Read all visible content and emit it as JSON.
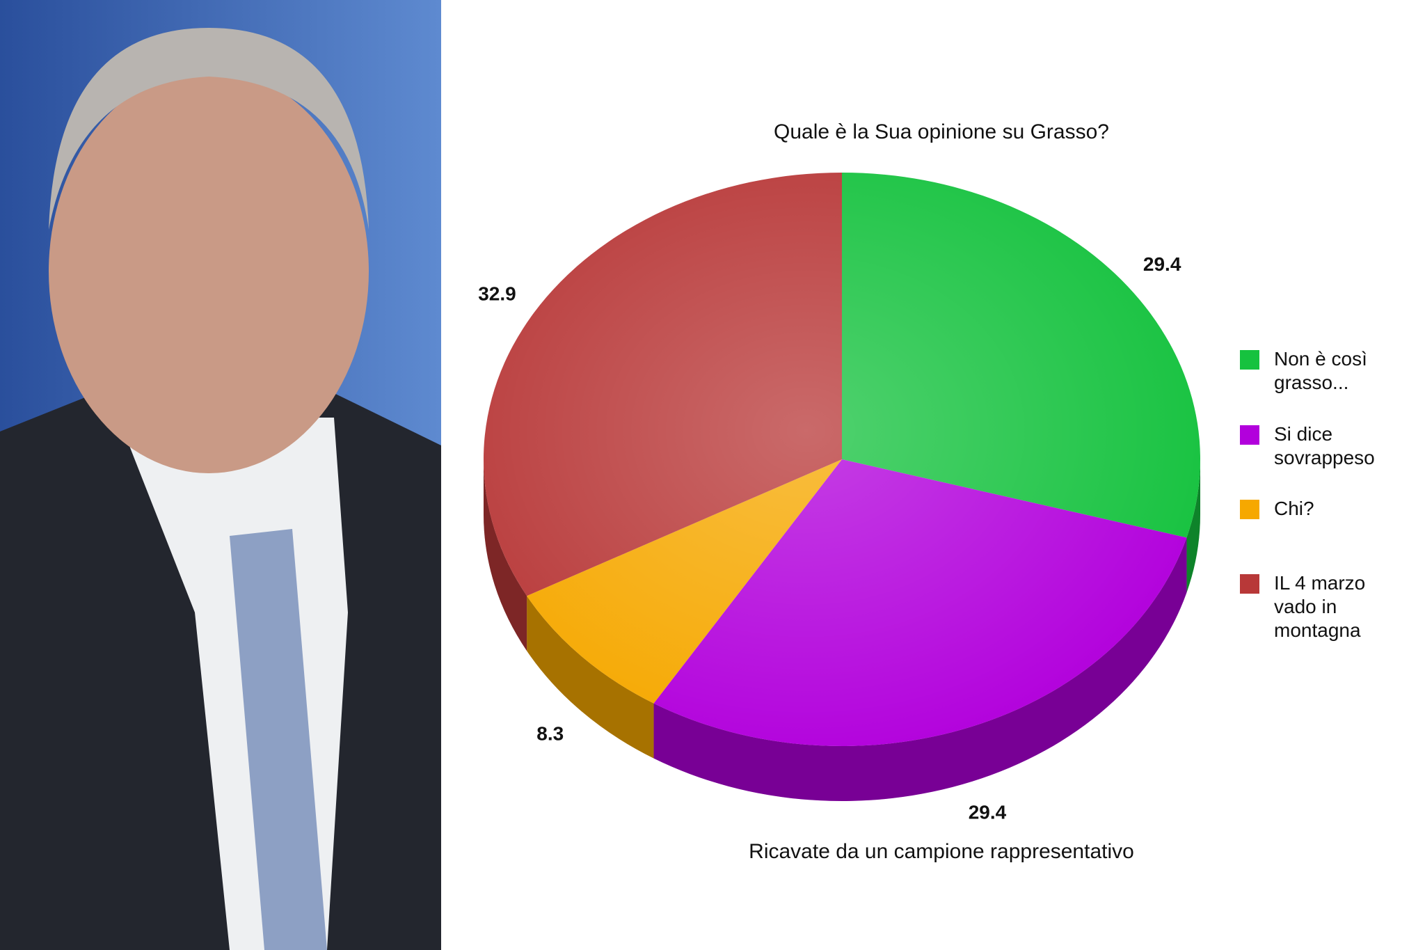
{
  "chart_data": {
    "type": "pie",
    "title": "Quale è la Sua opinione su Grasso?",
    "subtitle": "Ricavate da un campione rappresentativo",
    "categories": [
      "Non è così grasso...",
      "Si dice sovrappeso",
      "Chi?",
      "IL 4 marzo vado in montagna"
    ],
    "values": [
      29.4,
      29.4,
      8.3,
      32.9
    ],
    "colors": [
      "#16c23f",
      "#b200dc",
      "#f6a800",
      "#b83838"
    ],
    "legend": "right"
  }
}
